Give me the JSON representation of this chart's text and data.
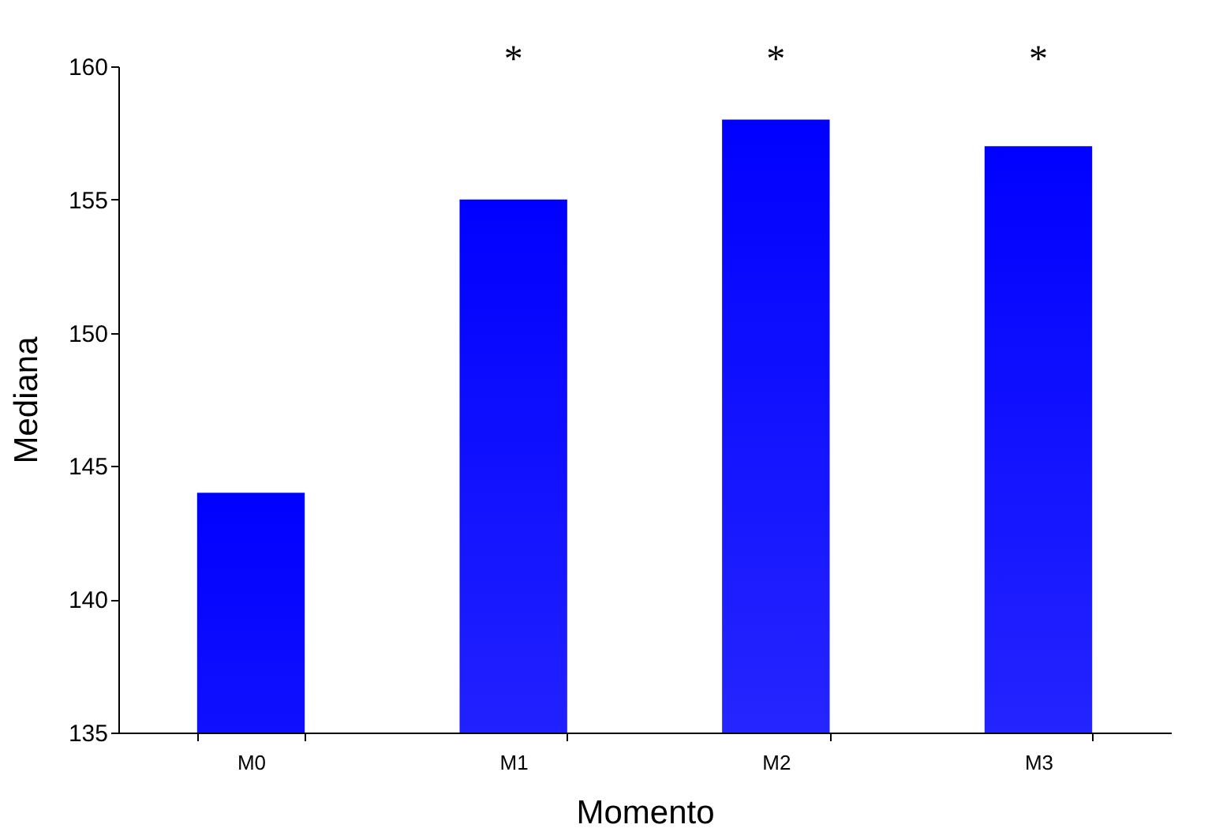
{
  "chart_data": {
    "type": "bar",
    "xlabel": "Momento",
    "ylabel": "Mediana",
    "categories": [
      "M0",
      "M1",
      "M2",
      "M3"
    ],
    "values": [
      144,
      155,
      158,
      157
    ],
    "color": "#0000ff",
    "ylim": [
      135,
      160
    ],
    "yticks": [
      135,
      140,
      145,
      150,
      155,
      160
    ],
    "annotations": [
      "*",
      "*",
      "*"
    ]
  }
}
